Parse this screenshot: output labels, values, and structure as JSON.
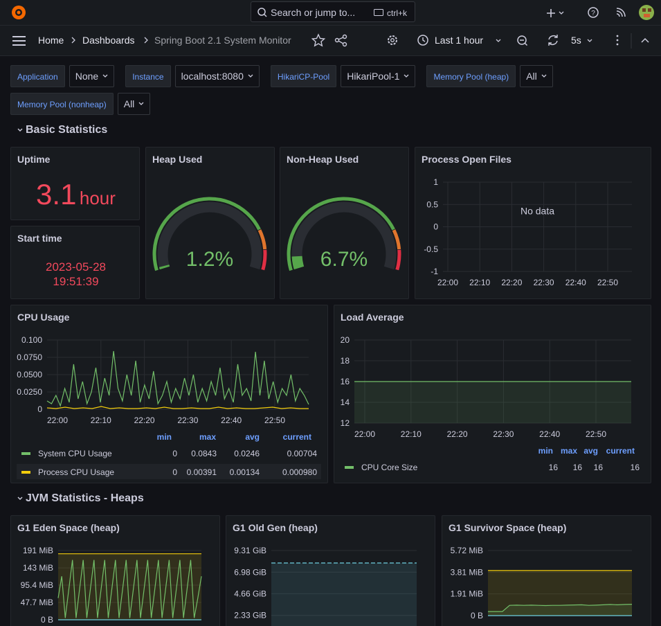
{
  "nav": {
    "search_placeholder": "Search or jump to...",
    "search_shortcut": "ctrl+k",
    "breadcrumbs": [
      "Home",
      "Dashboards",
      "Spring Boot 2.1 System Monitor"
    ],
    "time_range": "Last 1 hour",
    "refresh_interval": "5s"
  },
  "variables": [
    {
      "label": "Application",
      "value": "None"
    },
    {
      "label": "Instance",
      "value": "localhost:8080"
    },
    {
      "label": "HikariCP-Pool",
      "value": "HikariPool-1"
    },
    {
      "label": "Memory Pool (heap)",
      "value": "All"
    },
    {
      "label": "Memory Pool (nonheap)",
      "value": "All"
    }
  ],
  "rows": [
    "Basic Statistics",
    "JVM Statistics - Heaps"
  ],
  "uptime": {
    "title": "Uptime",
    "value": 3.1,
    "unit": "hour",
    "color": "#f2495c"
  },
  "start_time": {
    "title": "Start time",
    "date": "2023-05-28",
    "time": "19:51:39",
    "color": "#f2495c"
  },
  "gauges": [
    {
      "title": "Heap Used",
      "value": 1.2,
      "value_label": "1.2%",
      "range": [
        0,
        100
      ],
      "thresholds": [
        {
          "value": 0,
          "color": "#56a64b"
        },
        {
          "value": 80,
          "color": "#e0752d"
        },
        {
          "value": 90,
          "color": "#e02f44"
        }
      ]
    },
    {
      "title": "Non-Heap Used",
      "value": 6.7,
      "value_label": "6.7%",
      "range": [
        0,
        100
      ],
      "thresholds": [
        {
          "value": 0,
          "color": "#56a64b"
        },
        {
          "value": 80,
          "color": "#e0752d"
        },
        {
          "value": 90,
          "color": "#e02f44"
        }
      ]
    }
  ],
  "timeseries": [
    {
      "title": "Process Open Files",
      "message": "No data",
      "ylim": [
        -1,
        1
      ],
      "yticks": [
        1,
        0.5,
        0,
        -0.5,
        -1
      ],
      "xticks": [
        "22:00",
        "22:10",
        "22:20",
        "22:30",
        "22:40",
        "22:50"
      ],
      "series": []
    },
    {
      "title": "CPU Usage",
      "ylim": [
        0,
        0.1
      ],
      "yticks": [
        {
          "value": 0.1,
          "label": "0.100"
        },
        {
          "value": 0.075,
          "label": "0.0750"
        },
        {
          "value": 0.05,
          "label": "0.0500"
        },
        {
          "value": 0.025,
          "label": "0.0250"
        },
        0
      ],
      "xticks": [
        "22:00",
        "22:10",
        "22:20",
        "22:30",
        "22:40",
        "22:50"
      ],
      "legend_columns": [
        "min",
        "max",
        "avg",
        "current"
      ],
      "series": [
        {
          "name": "System CPU Usage",
          "color": "#73bf69",
          "stats": [
            0,
            0.0843,
            0.0246,
            0.00704
          ],
          "values": [
            0.012,
            0.008,
            0.02,
            0.005,
            0.03,
            0.01,
            0.065,
            0.015,
            0.04,
            0.008,
            0.025,
            0.06,
            0.01,
            0.045,
            0.02,
            0.084,
            0.03,
            0.012,
            0.05,
            0.02,
            0.07,
            0.01,
            0.035,
            0.015,
            0.055,
            0.008,
            0.02,
            0.04,
            0.01,
            0.03,
            0.015,
            0.045,
            0.02,
            0.05,
            0.01,
            0.03,
            0.012,
            0.04,
            0.02,
            0.06,
            0.015,
            0.03,
            0.01,
            0.065,
            0.02,
            0.03,
            0.012,
            0.083,
            0.02,
            0.07,
            0.015,
            0.04,
            0.01,
            0.03,
            0.02,
            0.05,
            0.012,
            0.03,
            0.02,
            0.007
          ]
        },
        {
          "name": "Process CPU Usage",
          "color": "#f2cc0c",
          "stats": [
            0,
            0.00391,
            0.00134,
            0.00098
          ],
          "stats_labels": [
            "0",
            "0.00391",
            "0.00134",
            "0.000980"
          ],
          "values": [
            0.002,
            0.001,
            0.003,
            0.001,
            0.002,
            0.001,
            0.004,
            0.001,
            0.002,
            0.001,
            0.001,
            0.002,
            0.001,
            0.003,
            0.001,
            0.001,
            0.002,
            0.001,
            0.001,
            0.003,
            0.001,
            0.002,
            0.001,
            0.001,
            0.002,
            0.003,
            0.001,
            0.002,
            0.001,
            0.001
          ]
        }
      ]
    },
    {
      "title": "Load Average",
      "ylim": [
        12,
        20
      ],
      "yticks": [
        20,
        18,
        16,
        14,
        12
      ],
      "xticks": [
        "22:00",
        "22:10",
        "22:20",
        "22:30",
        "22:40",
        "22:50"
      ],
      "legend_columns": [
        "min",
        "max",
        "avg",
        "current"
      ],
      "series": [
        {
          "name": "CPU Core Size",
          "color": "#73bf69",
          "fill": true,
          "stats": [
            16,
            16,
            16,
            16
          ],
          "values": [
            16,
            16
          ]
        }
      ]
    },
    {
      "title": "G1 Eden Space (heap)",
      "ylim": [
        0,
        191
      ],
      "yticks": [
        {
          "value": 191,
          "label": "191 MiB"
        },
        {
          "value": 143,
          "label": "143 MiB"
        },
        {
          "value": 95.4,
          "label": "95.4 MiB"
        },
        {
          "value": 47.7,
          "label": "47.7 MiB"
        },
        {
          "value": 0,
          "label": "0 B"
        }
      ],
      "xticks": [],
      "series": [
        {
          "color": "#f2cc0c",
          "fill": true,
          "values": [
            182,
            182
          ]
        },
        {
          "color": "#73bf69",
          "values": [
            60,
            120,
            5,
            85,
            165,
            5,
            85,
            165,
            5,
            85,
            165,
            5,
            85,
            165,
            5,
            85,
            165,
            5,
            85,
            165,
            5,
            85,
            165,
            5,
            85,
            165,
            5,
            85,
            165,
            5,
            85,
            165,
            5,
            85,
            165,
            5,
            85,
            165,
            5,
            60,
            120
          ]
        },
        {
          "color": "#6ed0e0",
          "values": [
            0,
            0
          ]
        }
      ]
    },
    {
      "title": "G1 Old Gen (heap)",
      "ylim": [
        0,
        9.31
      ],
      "yticks": [
        {
          "value": 9.31,
          "label": "9.31 GiB"
        },
        {
          "value": 6.98,
          "label": "6.98 GiB"
        },
        {
          "value": 4.66,
          "label": "4.66 GiB"
        },
        {
          "value": 2.33,
          "label": "2.33 GiB"
        }
      ],
      "xticks": [],
      "series": [
        {
          "color": "#6ed0e0",
          "fill": true,
          "dashed": true,
          "values": [
            7.97,
            7.97
          ]
        }
      ]
    },
    {
      "title": "G1 Survivor Space (heap)",
      "ylim": [
        0,
        5.72
      ],
      "yticks": [
        {
          "value": 5.72,
          "label": "5.72 MiB"
        },
        {
          "value": 3.81,
          "label": "3.81 MiB"
        },
        {
          "value": 1.91,
          "label": "1.91 MiB"
        },
        {
          "value": 0,
          "label": "0 B"
        }
      ],
      "xticks": [],
      "series": [
        {
          "color": "#f2cc0c",
          "fill": true,
          "values": [
            3.96,
            3.96
          ]
        },
        {
          "color": "#73bf69",
          "fill": true,
          "values": [
            0.36,
            0.36,
            0.36,
            0.9,
            0.92,
            0.9,
            0.92,
            0.9,
            0.88,
            0.9,
            0.9,
            0.92,
            0.94,
            0.95,
            0.9,
            0.92,
            0.95,
            0.98,
            0.95,
            0.98,
            1.0
          ]
        },
        {
          "color": "#6ed0e0",
          "values": [
            0,
            0
          ]
        }
      ]
    }
  ]
}
